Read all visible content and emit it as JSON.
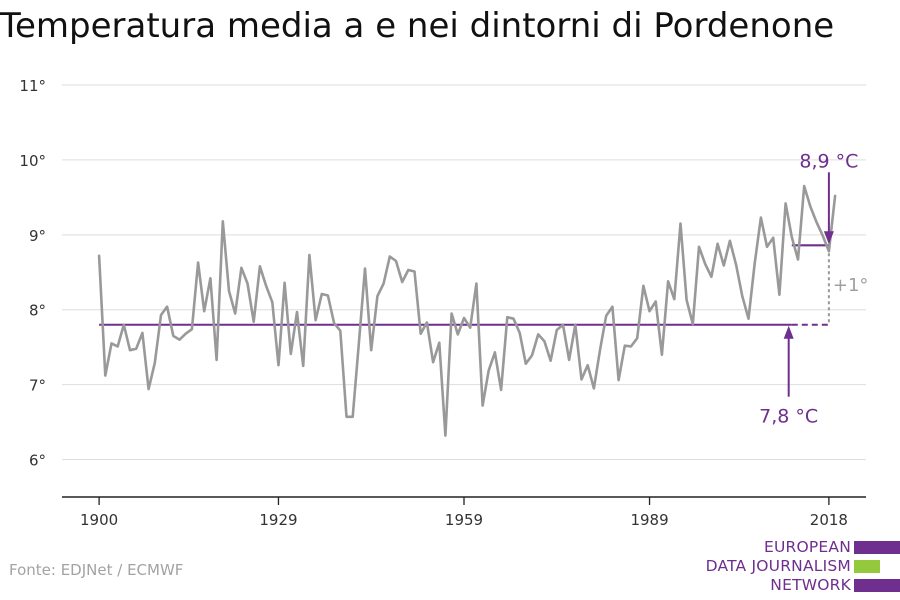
{
  "title": "Temperatura media a e nei dintorni di Pordenone",
  "source": "Fonte: EDJNet / ECMWF",
  "logo": {
    "lines": [
      "EUROPEAN",
      "DATA JOURNALISM",
      "NETWORK"
    ],
    "colors": [
      "#6e2f8e",
      "#95c93d",
      "#6e2f8e"
    ]
  },
  "chart_data": {
    "type": "line",
    "ylim": [
      5.5,
      11
    ],
    "yticks": [
      6,
      7,
      8,
      9,
      10,
      11
    ],
    "ytick_labels": [
      "6°",
      "7°",
      "8°",
      "9°",
      "10°",
      "11°"
    ],
    "xlim": [
      1894,
      2024
    ],
    "xticks": [
      1900,
      1929,
      1959,
      1989,
      2018
    ],
    "xtick_labels": [
      "1900",
      "1929",
      "1959",
      "1989",
      "2018"
    ],
    "grid": true,
    "series": [
      {
        "color": "#999999",
        "x": [
          1900,
          1901,
          1902,
          1903,
          1904,
          1905,
          1906,
          1907,
          1908,
          1909,
          1910,
          1911,
          1912,
          1913,
          1914,
          1915,
          1916,
          1917,
          1918,
          1919,
          1920,
          1921,
          1922,
          1923,
          1924,
          1925,
          1926,
          1927,
          1928,
          1929,
          1930,
          1931,
          1932,
          1933,
          1934,
          1935,
          1936,
          1937,
          1938,
          1939,
          1940,
          1941,
          1942,
          1943,
          1944,
          1945,
          1946,
          1947,
          1948,
          1949,
          1950,
          1951,
          1952,
          1953,
          1954,
          1955,
          1956,
          1957,
          1958,
          1959,
          1960,
          1961,
          1962,
          1963,
          1964,
          1965,
          1966,
          1967,
          1968,
          1969,
          1970,
          1971,
          1972,
          1973,
          1974,
          1975,
          1976,
          1977,
          1978,
          1979,
          1980,
          1981,
          1982,
          1983,
          1984,
          1985,
          1986,
          1987,
          1988,
          1989,
          1990,
          1991,
          1992,
          1993,
          1994,
          1995,
          1996,
          1997,
          1998,
          1999,
          2000,
          2001,
          2002,
          2003,
          2004,
          2005,
          2006,
          2007,
          2008,
          2009,
          2010,
          2011,
          2012,
          2013,
          2014,
          2015,
          2016,
          2017,
          2018,
          2019
        ],
        "values": [
          8.72,
          7.12,
          7.55,
          7.51,
          7.8,
          7.46,
          7.48,
          7.69,
          6.94,
          7.29,
          7.93,
          8.04,
          7.65,
          7.6,
          7.68,
          7.74,
          8.63,
          7.98,
          8.42,
          7.33,
          9.18,
          8.25,
          7.95,
          8.56,
          8.35,
          7.84,
          8.58,
          8.32,
          8.1,
          7.26,
          8.36,
          7.41,
          7.97,
          7.25,
          8.73,
          7.86,
          8.21,
          8.19,
          7.82,
          7.72,
          6.57,
          6.57,
          7.56,
          8.55,
          7.46,
          8.18,
          8.35,
          8.71,
          8.65,
          8.37,
          8.53,
          8.51,
          7.68,
          7.83,
          7.3,
          7.56,
          6.32,
          7.95,
          7.67,
          7.89,
          7.76,
          8.35,
          6.72,
          7.19,
          7.43,
          6.93,
          7.9,
          7.88,
          7.69,
          7.28,
          7.39,
          7.67,
          7.58,
          7.32,
          7.73,
          7.8,
          7.33,
          7.8,
          7.07,
          7.26,
          6.95,
          7.47,
          7.92,
          8.04,
          7.06,
          7.52,
          7.51,
          7.62,
          8.32,
          7.98,
          8.11,
          7.4,
          8.38,
          8.14,
          9.15,
          8.13,
          7.81,
          8.84,
          8.61,
          8.44,
          8.88,
          8.59,
          8.92,
          8.6,
          8.18,
          7.88,
          8.62,
          9.23,
          8.84,
          8.96,
          8.2,
          9.42,
          8.97,
          8.67,
          9.65,
          9.38,
          9.17,
          8.99,
          8.78,
          9.52
        ]
      }
    ],
    "reference_lines": [
      {
        "label": "7,8 °C",
        "value": 7.8,
        "from": 1900,
        "to": 2012,
        "dashed_to": 2018,
        "color": "#6e2f8e"
      },
      {
        "label": "8,9 °C",
        "value": 8.86,
        "from": 2012,
        "to": 2018,
        "color": "#6e2f8e"
      }
    ],
    "difference_label": "+1°"
  }
}
